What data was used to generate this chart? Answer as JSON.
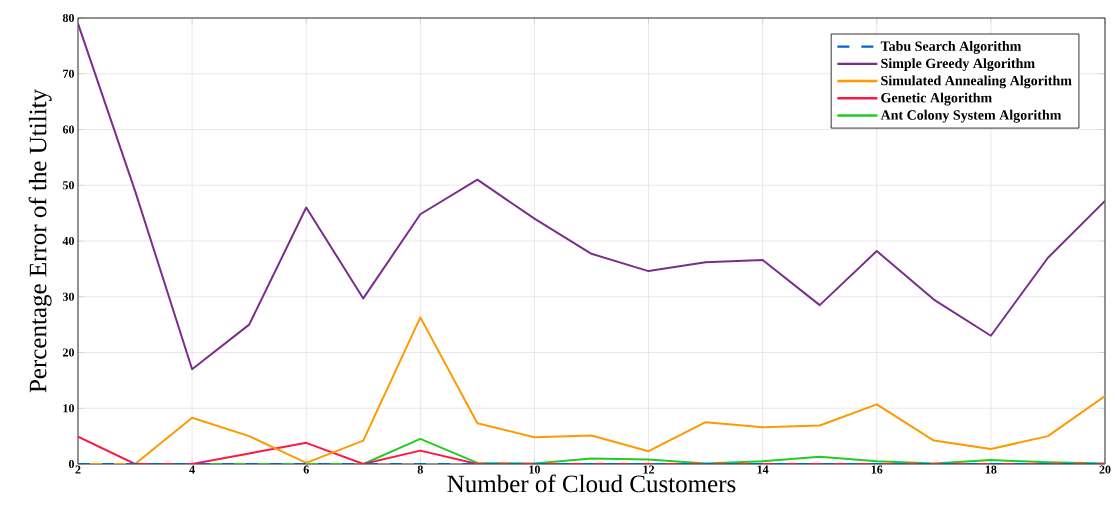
{
  "chart_data": {
    "type": "line",
    "xlabel": "Number of Cloud Customers",
    "ylabel": "Percentage Error of the Utility",
    "x": [
      2,
      3,
      4,
      5,
      6,
      7,
      8,
      9,
      10,
      11,
      12,
      13,
      14,
      15,
      16,
      17,
      18,
      19,
      20
    ],
    "xlim": [
      2,
      20
    ],
    "ylim": [
      0,
      80
    ],
    "xticks": [
      2,
      4,
      6,
      8,
      10,
      12,
      14,
      16,
      18,
      20
    ],
    "yticks": [
      0,
      10,
      20,
      30,
      40,
      50,
      60,
      70,
      80
    ],
    "grid": true,
    "legend": "top right",
    "marker": "none",
    "series": [
      {
        "name": "Tabu Search Algorithm",
        "color": "#0066cc",
        "line_style": "dashed",
        "values": [
          0,
          0,
          0,
          0,
          0,
          0,
          0,
          0,
          0,
          0,
          0,
          0,
          0,
          0,
          0,
          0,
          0,
          0,
          0
        ]
      },
      {
        "name": "Simple Greedy Algorithm",
        "color": "#7b2d8e",
        "line_style": "solid",
        "values": [
          79,
          49,
          17,
          25,
          46,
          29.7,
          44.8,
          51,
          44,
          37.7,
          34.6,
          36.2,
          36.6,
          28.5,
          38.2,
          29.5,
          23,
          37,
          47.2
        ]
      },
      {
        "name": "Simulated Annealing Algorithm",
        "color": "#ff9900",
        "line_style": "solid",
        "values": [
          0,
          0,
          8.3,
          5,
          0.2,
          4.2,
          26.3,
          7.3,
          4.8,
          5.1,
          2.3,
          7.5,
          6.6,
          6.9,
          10.7,
          4.2,
          2.7,
          5,
          12.2
        ]
      },
      {
        "name": "Genetic Algorithm",
        "color": "#ff1744",
        "line_style": "solid",
        "values": [
          4.9,
          0,
          0,
          1.9,
          3.8,
          0,
          2.4,
          0,
          0,
          0,
          0,
          0,
          0,
          0,
          0,
          0,
          0,
          0,
          0
        ]
      },
      {
        "name": "Ant Colony System Algorithm",
        "color": "#22cc22",
        "line_style": "solid",
        "values": [
          0,
          0,
          0,
          0,
          0,
          0,
          4.5,
          0.2,
          0.1,
          1.0,
          0.8,
          0.1,
          0.5,
          1.3,
          0.5,
          0.1,
          0.7,
          0.3,
          0.1
        ]
      }
    ]
  }
}
